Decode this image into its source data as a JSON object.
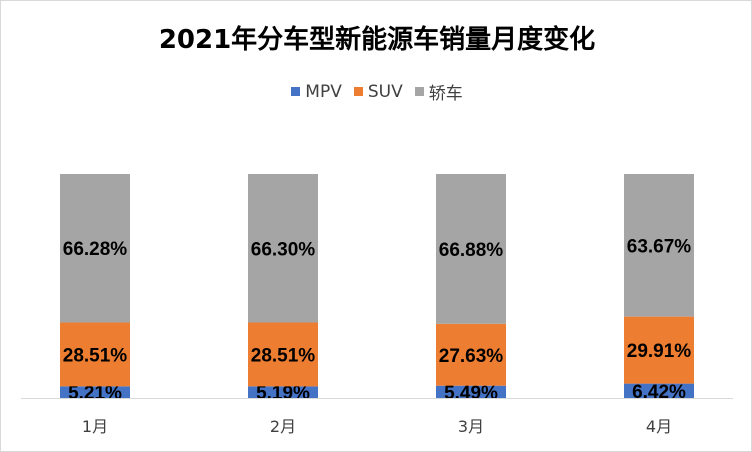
{
  "chart_data": {
    "type": "bar",
    "stacked": true,
    "title": "2021年分车型新能源车销量月度变化",
    "categories": [
      "1月",
      "2月",
      "3月",
      "4月"
    ],
    "series": [
      {
        "name": "MPV",
        "color": "#4472c4",
        "values": [
          5.21,
          5.19,
          5.49,
          6.42
        ],
        "labels": [
          "5.21%",
          "5.19%",
          "5.49%",
          "6.42%"
        ]
      },
      {
        "name": "SUV",
        "color": "#ed7d31",
        "values": [
          28.51,
          28.51,
          27.63,
          29.91
        ],
        "labels": [
          "28.51%",
          "28.51%",
          "27.63%",
          "29.91%"
        ]
      },
      {
        "name": "轿车",
        "color": "#a5a5a5",
        "values": [
          66.28,
          66.3,
          66.88,
          63.67
        ],
        "labels": [
          "66.28%",
          "66.30%",
          "66.88%",
          "63.67%"
        ]
      }
    ],
    "ylim": [
      0,
      100
    ],
    "legend_position": "top",
    "grid": false
  }
}
